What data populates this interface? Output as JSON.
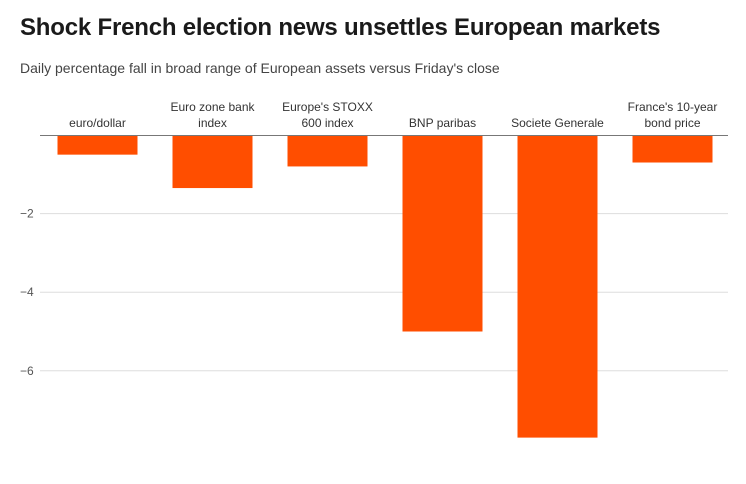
{
  "title": "Shock French election news unsettles European markets",
  "subtitle": "Daily percentage fall in broad range of European assets versus Friday's close",
  "colors": {
    "bar": "#ff4e00",
    "grid": "#dddddd",
    "zero": "#777777"
  },
  "chart_data": {
    "type": "bar",
    "title": "Shock French election news unsettles European markets",
    "subtitle": "Daily percentage fall in broad range of European assets versus Friday's close",
    "categories": [
      [
        "euro/dollar"
      ],
      [
        "Euro zone bank",
        "index"
      ],
      [
        "Europe's STOXX",
        "600 index"
      ],
      [
        "BNP paribas"
      ],
      [
        "Societe Generale"
      ],
      [
        "France's 10-year",
        "bond price"
      ]
    ],
    "values": [
      -0.5,
      -1.35,
      -0.8,
      -5.0,
      -7.7,
      -0.7
    ],
    "yticks": [
      {
        "value": -2,
        "label": "−2"
      },
      {
        "value": -4,
        "label": "−4"
      },
      {
        "value": -6,
        "label": "−6"
      }
    ],
    "ylim": [
      -7.7,
      0
    ],
    "xlabel": "",
    "ylabel": "",
    "grid": true
  }
}
